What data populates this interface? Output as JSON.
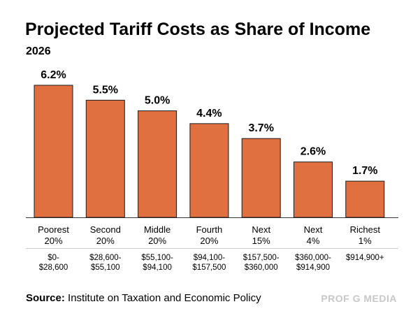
{
  "header": {
    "title": "Projected Tariff Costs as Share of Income",
    "subtitle": "2026"
  },
  "footer": {
    "source_label": "Source:",
    "source_text": "Institute on Taxation and Economic Policy",
    "brand": "PROF G MEDIA"
  },
  "colors": {
    "bar": "#E07040",
    "bar_stroke": "#1a1a1a",
    "divider": "#cccccc"
  },
  "chart_data": {
    "type": "bar",
    "title": "Projected Tariff Costs as Share of Income",
    "subtitle": "2026",
    "categories": [
      {
        "line1": "Poorest",
        "line2": "20%",
        "range1": "$0-",
        "range2": "$28,600"
      },
      {
        "line1": "Second",
        "line2": "20%",
        "range1": "$28,600-",
        "range2": "$55,100"
      },
      {
        "line1": "Middle",
        "line2": "20%",
        "range1": "$55,100-",
        "range2": "$94,100"
      },
      {
        "line1": "Fourth",
        "line2": "20%",
        "range1": "$94,100-",
        "range2": "$157,500"
      },
      {
        "line1": "Next",
        "line2": "15%",
        "range1": "$157,500-",
        "range2": "$360,000"
      },
      {
        "line1": "Next",
        "line2": "4%",
        "range1": "$360,000-",
        "range2": "$914,900"
      },
      {
        "line1": "Richest",
        "line2": "1%",
        "range1": "$914,900+",
        "range2": ""
      }
    ],
    "values": [
      6.2,
      5.5,
      5.0,
      4.4,
      3.7,
      2.6,
      1.7
    ],
    "value_labels": [
      "6.2%",
      "5.5%",
      "5.0%",
      "4.4%",
      "3.7%",
      "2.6%",
      "1.7%"
    ],
    "ylim": [
      0,
      6.2
    ],
    "grid": false,
    "legend": "none"
  }
}
